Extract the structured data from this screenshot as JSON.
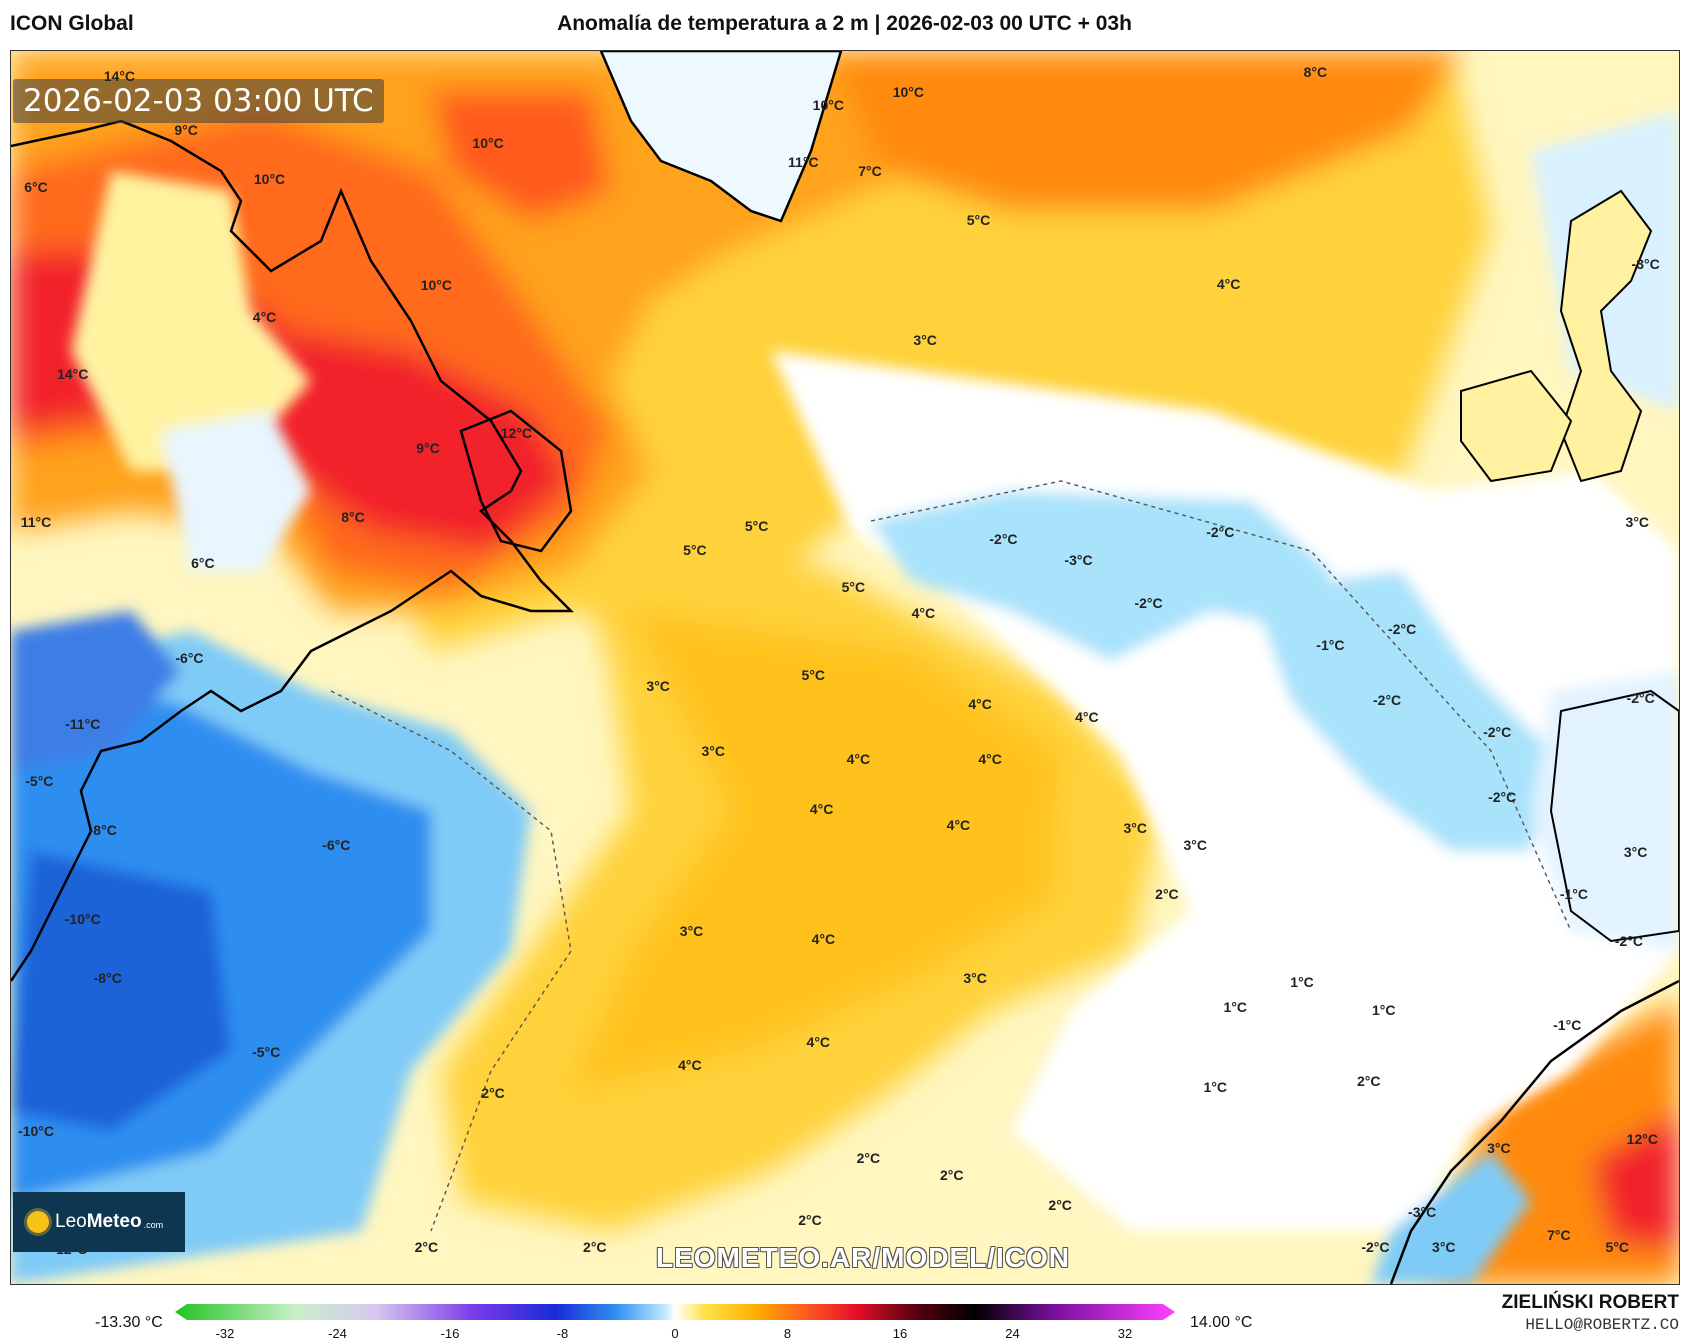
{
  "header": {
    "model": "ICON Global",
    "title": "Anomalía de temperatura a 2 m | 2026-02-03 00 UTC + 03h"
  },
  "map": {
    "timestamp": "2026-02-03 03:00 UTC",
    "watermark": "LEOMETEO.AR/MODEL/ICON",
    "logo_name_light": "Leo",
    "logo_name_bold": "Meteo",
    "logo_suffix": ".com",
    "labels": [
      {
        "t": "14°C",
        "x": 6.5,
        "y": 2.0
      },
      {
        "t": "9°C",
        "x": 10.5,
        "y": 6.4
      },
      {
        "t": "6°C",
        "x": 1.5,
        "y": 11.0
      },
      {
        "t": "10°C",
        "x": 15.5,
        "y": 10.4
      },
      {
        "t": "10°C",
        "x": 28.6,
        "y": 7.5
      },
      {
        "t": "10°C",
        "x": 25.5,
        "y": 19.0
      },
      {
        "t": "4°C",
        "x": 15.2,
        "y": 21.6
      },
      {
        "t": "14°C",
        "x": 3.7,
        "y": 26.2
      },
      {
        "t": "9°C",
        "x": 25.0,
        "y": 32.2
      },
      {
        "t": "12°C",
        "x": 30.3,
        "y": 31.0
      },
      {
        "t": "11°C",
        "x": 1.5,
        "y": 38.2
      },
      {
        "t": "8°C",
        "x": 20.5,
        "y": 37.8
      },
      {
        "t": "6°C",
        "x": 11.5,
        "y": 41.5
      },
      {
        "t": "-6°C",
        "x": 10.7,
        "y": 49.2
      },
      {
        "t": "-11°C",
        "x": 4.3,
        "y": 54.6
      },
      {
        "t": "-5°C",
        "x": 1.7,
        "y": 59.2
      },
      {
        "t": "-8°C",
        "x": 5.5,
        "y": 63.2
      },
      {
        "t": "-6°C",
        "x": 19.5,
        "y": 64.4
      },
      {
        "t": "-10°C",
        "x": 4.3,
        "y": 70.4
      },
      {
        "t": "-8°C",
        "x": 5.8,
        "y": 75.2
      },
      {
        "t": "-5°C",
        "x": 15.3,
        "y": 81.2
      },
      {
        "t": "-10°C",
        "x": 1.5,
        "y": 87.6
      },
      {
        "t": "-12°C",
        "x": 3.5,
        "y": 97.2
      },
      {
        "t": "10°C",
        "x": 49.0,
        "y": 4.4
      },
      {
        "t": "11°C",
        "x": 47.5,
        "y": 9.0
      },
      {
        "t": "7°C",
        "x": 51.5,
        "y": 9.7
      },
      {
        "t": "10°C",
        "x": 53.8,
        "y": 3.3
      },
      {
        "t": "8°C",
        "x": 78.2,
        "y": 1.7
      },
      {
        "t": "5°C",
        "x": 58.0,
        "y": 13.7
      },
      {
        "t": "4°C",
        "x": 73.0,
        "y": 18.9
      },
      {
        "t": "3°C",
        "x": 54.8,
        "y": 23.4
      },
      {
        "t": "-3°C",
        "x": 98.0,
        "y": 17.3
      },
      {
        "t": "5°C",
        "x": 44.7,
        "y": 38.5
      },
      {
        "t": "5°C",
        "x": 41.0,
        "y": 40.5
      },
      {
        "t": "5°C",
        "x": 50.5,
        "y": 43.5
      },
      {
        "t": "4°C",
        "x": 54.7,
        "y": 45.6
      },
      {
        "t": "-2°C",
        "x": 59.5,
        "y": 39.6
      },
      {
        "t": "-2°C",
        "x": 72.5,
        "y": 39.0
      },
      {
        "t": "-3°C",
        "x": 64.0,
        "y": 41.3
      },
      {
        "t": "-2°C",
        "x": 68.2,
        "y": 44.8
      },
      {
        "t": "-2°C",
        "x": 83.4,
        "y": 46.9
      },
      {
        "t": "-1°C",
        "x": 79.1,
        "y": 48.2
      },
      {
        "t": "-2°C",
        "x": 82.5,
        "y": 52.6
      },
      {
        "t": "-2°C",
        "x": 89.1,
        "y": 55.2
      },
      {
        "t": "-2°C",
        "x": 89.4,
        "y": 60.5
      },
      {
        "t": "-2°C",
        "x": 97.7,
        "y": 52.5
      },
      {
        "t": "3°C",
        "x": 97.5,
        "y": 38.2
      },
      {
        "t": "3°C",
        "x": 38.8,
        "y": 51.5
      },
      {
        "t": "5°C",
        "x": 48.1,
        "y": 50.6
      },
      {
        "t": "4°C",
        "x": 58.1,
        "y": 53.0
      },
      {
        "t": "4°C",
        "x": 64.5,
        "y": 54.0
      },
      {
        "t": "3°C",
        "x": 42.1,
        "y": 56.8
      },
      {
        "t": "4°C",
        "x": 50.8,
        "y": 57.4
      },
      {
        "t": "4°C",
        "x": 58.7,
        "y": 57.4
      },
      {
        "t": "4°C",
        "x": 48.6,
        "y": 61.5
      },
      {
        "t": "4°C",
        "x": 56.8,
        "y": 62.8
      },
      {
        "t": "3°C",
        "x": 67.4,
        "y": 63.0
      },
      {
        "t": "3°C",
        "x": 71.0,
        "y": 64.4
      },
      {
        "t": "2°C",
        "x": 69.3,
        "y": 68.4
      },
      {
        "t": "3°C",
        "x": 97.4,
        "y": 65.0
      },
      {
        "t": "-1°C",
        "x": 93.7,
        "y": 68.4
      },
      {
        "t": "-2°C",
        "x": 97.0,
        "y": 72.2
      },
      {
        "t": "3°C",
        "x": 40.8,
        "y": 71.4
      },
      {
        "t": "4°C",
        "x": 48.7,
        "y": 72.0
      },
      {
        "t": "3°C",
        "x": 57.8,
        "y": 75.2
      },
      {
        "t": "1°C",
        "x": 77.4,
        "y": 75.5
      },
      {
        "t": "1°C",
        "x": 73.4,
        "y": 77.5
      },
      {
        "t": "1°C",
        "x": 82.3,
        "y": 77.8
      },
      {
        "t": "-1°C",
        "x": 93.3,
        "y": 79.0
      },
      {
        "t": "4°C",
        "x": 40.7,
        "y": 82.2
      },
      {
        "t": "4°C",
        "x": 48.4,
        "y": 80.4
      },
      {
        "t": "2°C",
        "x": 28.9,
        "y": 84.5
      },
      {
        "t": "1°C",
        "x": 72.2,
        "y": 84.0
      },
      {
        "t": "2°C",
        "x": 81.4,
        "y": 83.5
      },
      {
        "t": "2°C",
        "x": 51.4,
        "y": 89.8
      },
      {
        "t": "2°C",
        "x": 56.4,
        "y": 91.2
      },
      {
        "t": "2°C",
        "x": 62.9,
        "y": 93.6
      },
      {
        "t": "2°C",
        "x": 47.9,
        "y": 94.8
      },
      {
        "t": "2°C",
        "x": 24.9,
        "y": 97.0
      },
      {
        "t": "2°C",
        "x": 35.0,
        "y": 97.0
      },
      {
        "t": "3°C",
        "x": 89.2,
        "y": 89.0
      },
      {
        "t": "12°C",
        "x": 97.8,
        "y": 88.2
      },
      {
        "t": "-3°C",
        "x": 84.6,
        "y": 94.2
      },
      {
        "t": "-2°C",
        "x": 81.8,
        "y": 97.0
      },
      {
        "t": "3°C",
        "x": 85.9,
        "y": 97.0
      },
      {
        "t": "7°C",
        "x": 92.8,
        "y": 96.0
      },
      {
        "t": "5°C",
        "x": 96.3,
        "y": 97.0
      }
    ]
  },
  "colorbar": {
    "min_value": "-13.30 °C",
    "max_value": "14.00 °C",
    "ticks": [
      "-32",
      "-24",
      "-16",
      "-8",
      "0",
      "8",
      "16",
      "24",
      "32"
    ]
  },
  "credit": {
    "author": "ZIELIŃSKI ROBERT",
    "email": "HELLO@ROBERTZ.CO"
  },
  "colors": {
    "ocean_neutral": "#fff6c0",
    "warm_light": "#ffe24a",
    "warm_mid": "#ffb000",
    "warm_hot": "#ff5b1f",
    "warm_extreme": "#e8102a",
    "cold_light": "#bfe9ff",
    "cold_mid": "#4fb3f5",
    "cold_deep": "#1a6ee0",
    "coastline": "#000000"
  }
}
